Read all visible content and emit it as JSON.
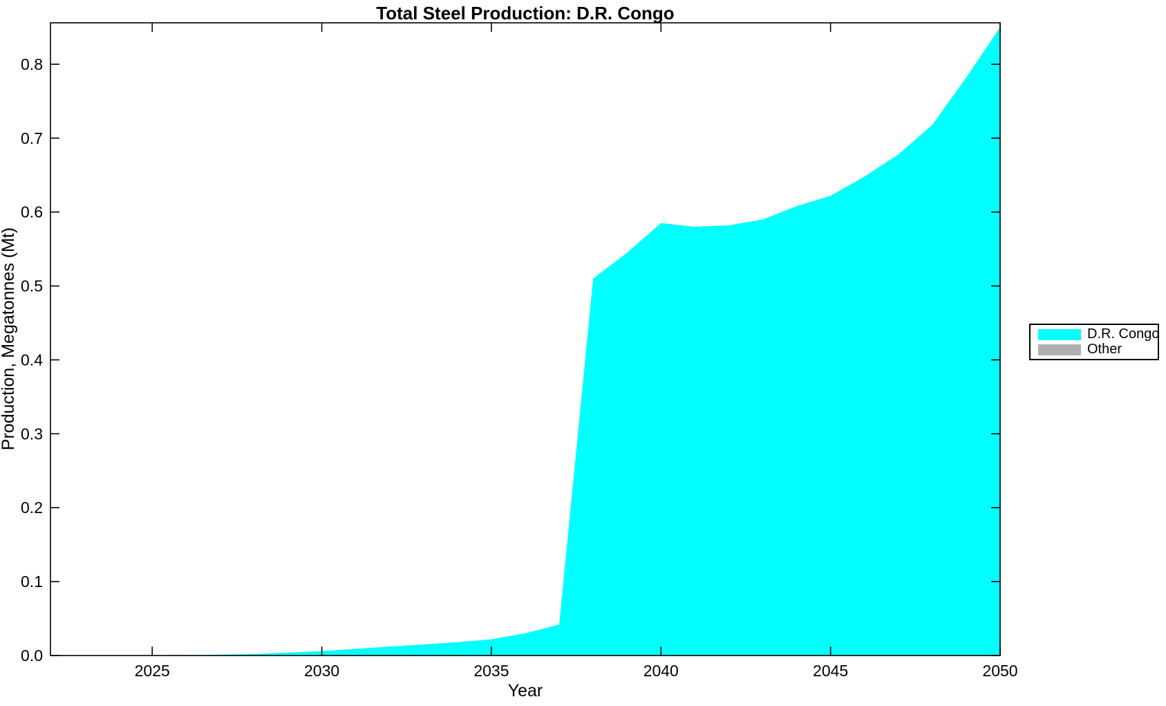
{
  "figure": {
    "background": "#ffffff",
    "axis_color": "#000000"
  },
  "chart_data": {
    "type": "area",
    "title": "Total Steel Production: D.R. Congo",
    "xlabel": "Year",
    "ylabel": "Production, Megatonnes (Mt)",
    "x": [
      2022,
      2023,
      2024,
      2025,
      2026,
      2027,
      2028,
      2029,
      2030,
      2031,
      2032,
      2033,
      2034,
      2035,
      2036,
      2037,
      2038,
      2039,
      2040,
      2041,
      2042,
      2043,
      2044,
      2045,
      2046,
      2047,
      2048,
      2049,
      2050
    ],
    "series": [
      {
        "name": "D.R. Congo",
        "color": "#00ffff",
        "values": [
          0,
          0.0001,
          0.0002,
          0.0004,
          0.0007,
          0.0012,
          0.002,
          0.004,
          0.006,
          0.009,
          0.012,
          0.015,
          0.018,
          0.022,
          0.03,
          0.042,
          0.51,
          0.545,
          0.585,
          0.58,
          0.582,
          0.59,
          0.608,
          0.622,
          0.648,
          0.678,
          0.718,
          0.782,
          0.85
        ]
      },
      {
        "name": "Other",
        "color": "#b0b0b0",
        "values": [
          0,
          0,
          0,
          0,
          0,
          0,
          0,
          0,
          0,
          0,
          0,
          0,
          0,
          0,
          0,
          0,
          0,
          0,
          0,
          0,
          0,
          0,
          0,
          0,
          0,
          0,
          0,
          0,
          0
        ]
      }
    ],
    "xlim": [
      2022,
      2050
    ],
    "ylim": [
      0,
      0.856
    ],
    "xticks": [
      2025,
      2030,
      2035,
      2040,
      2045,
      2050
    ],
    "yticks": [
      0,
      0.1,
      0.2,
      0.3,
      0.4,
      0.5,
      0.6,
      0.7,
      0.8
    ],
    "ytick_labels": [
      "0.0",
      "0.1",
      "0.2",
      "0.3",
      "0.4",
      "0.5",
      "0.6",
      "0.7",
      "0.8"
    ],
    "grid": false,
    "legend_position": "right-outside",
    "legend_entries": [
      "D.R. Congo",
      "Other"
    ]
  }
}
